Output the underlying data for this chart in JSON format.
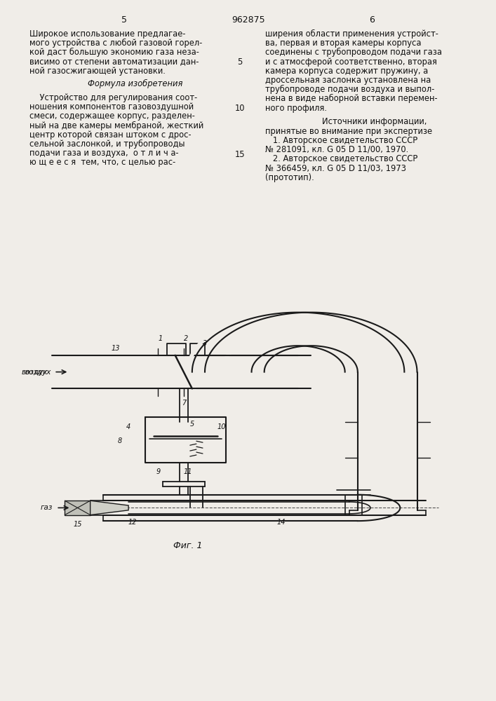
{
  "bg_color": "#f0ede8",
  "left_col": {
    "lines": [
      "Широкое использование предлагае-",
      "мого устройства с любой газовой горел-",
      "кой даст большую экономию газа неза-",
      "висимо от степени автоматизации дан-",
      "ной газосжигающей установки."
    ],
    "formula_header": "Формула изобретения",
    "formula_lines": [
      "    Устройство для регулирования соот-",
      "ношения компонентов газовоздушной",
      "смеси, содержащее корпус, разделен-",
      "ный на две камеры мембраной, жесткий",
      "центр которой связан штоком с дрос-",
      "сельной заслонкой, и трубопроводы",
      "подачи газа и воздуха,  о т л и ч а-",
      "ю щ е е с я  тем, что, с целью рас-"
    ]
  },
  "right_col": {
    "lines": [
      "ширения области применения устройст-",
      "ва, первая и вторая камеры корпуса",
      "соединены с трубопроводом подачи газа",
      "и с атмосферой соответственно, вторая",
      "камера корпуса содержит пружину, а",
      "дроссельная заслонка установлена на",
      "трубопроводе подачи воздуха и выпол-",
      "нена в виде наборной вставки перемен-",
      "ного профиля."
    ],
    "sources_header": "Источники информации,",
    "sources_lines": [
      "принятые во внимание при экспертизе",
      "   1. Авторское свидетельство СССР",
      "№ 281091, кл. G 05 D 11/00, 1970.",
      "   2. Авторское свидетельство СССР",
      "№ 366459, кл. G 05 D 11/03, 1973",
      "(прототип)."
    ]
  },
  "line_numbers": [
    {
      "n": "5",
      "row": 4
    },
    {
      "n": "10",
      "row": 9
    },
    {
      "n": "15",
      "row": 14
    }
  ],
  "header_left_num": "5",
  "header_center": "962875",
  "header_right_num": "6",
  "fig_label": "Фиг. 1"
}
